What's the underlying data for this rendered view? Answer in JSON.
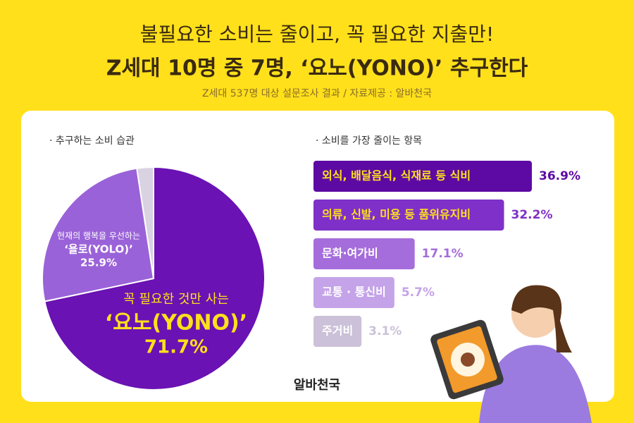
{
  "header": {
    "title_line1": "불필요한 소비는 줄이고, 꼭 필요한 지출만!",
    "title_line2": "Z세대 10명 중 7명, ‘요노(YONO)’ 추구한다",
    "source": "Z세대 537명 대상 설문조사 결과 / 자료제공 : 알바천국"
  },
  "logo": "알바천국",
  "chart_data": [
    {
      "type": "pie",
      "title": "· 추구하는 소비 습관",
      "categories": [
        "‘요노(YONO)’",
        "‘욜로(YOLO)’",
        null
      ],
      "descriptions": [
        "꼭 필요한 것만 사는",
        "현재의 행복을 우선하는",
        null
      ],
      "values": [
        71.7,
        25.9,
        2.4
      ],
      "value_labels": [
        "71.7%",
        "25.9%",
        null
      ],
      "colors": [
        "#6a12b3",
        "#9a62d8",
        "#d8d2e2"
      ]
    },
    {
      "type": "hbar",
      "title": "· 소비를 가장 줄이는 항목",
      "categories": [
        "외식, 배달음식, 식재료 등 식비",
        "의류, 신발, 미용 등 품위유지비",
        "문화·여가비",
        "교통 · 통신비",
        "주거비"
      ],
      "values": [
        36.9,
        32.2,
        17.1,
        5.7,
        3.1
      ],
      "value_labels": [
        "36.9%",
        "32.2%",
        "17.1%",
        "5.7%",
        "3.1%"
      ],
      "colors": [
        "#5c0aa3",
        "#7f30c8",
        "#a56ddb",
        "#c4a3e8",
        "#cbc1d8"
      ],
      "xlim": [
        0,
        40
      ]
    }
  ]
}
